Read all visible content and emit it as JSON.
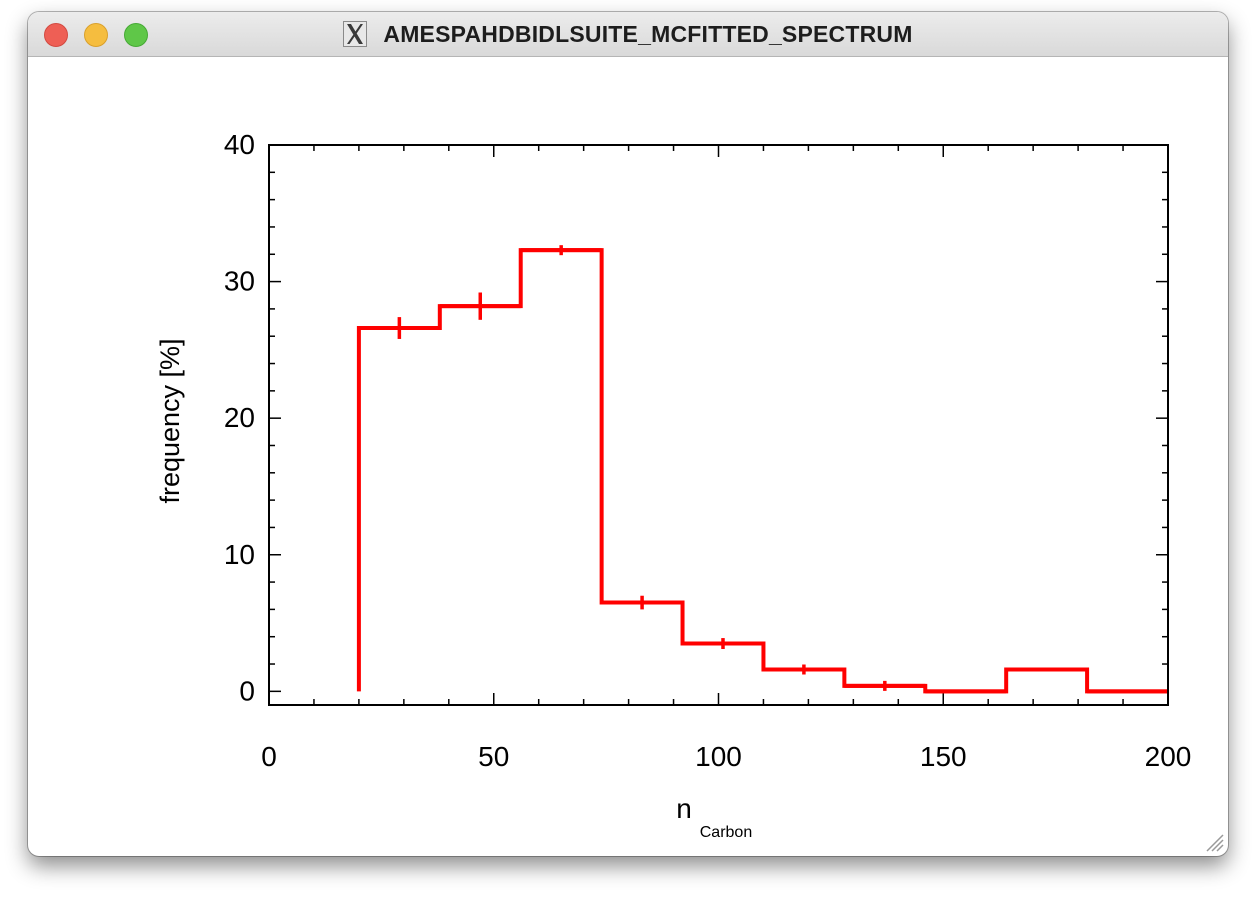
{
  "window": {
    "title": "AMESPAHDBIDLSUITE_MCFITTED_SPECTRUM",
    "title_icon": "x11-icon",
    "buttons": [
      "close",
      "minimize",
      "zoom"
    ]
  },
  "chart_data": {
    "type": "histogram",
    "xlabel": "n",
    "xlabel_subscript": "Carbon",
    "ylabel": "frequency [%]",
    "xlim": [
      0,
      200
    ],
    "ylim": [
      -1,
      40
    ],
    "xticks": [
      0,
      50,
      100,
      150,
      200
    ],
    "yticks": [
      0,
      10,
      20,
      30,
      40
    ],
    "grid": false,
    "color": "#ff0000",
    "bins": [
      {
        "x0": 20,
        "x1": 38,
        "value": 26.6,
        "error": 0.8
      },
      {
        "x0": 38,
        "x1": 56,
        "value": 28.2,
        "error": 1.0
      },
      {
        "x0": 56,
        "x1": 74,
        "value": 32.3,
        "error": 0.3
      },
      {
        "x0": 74,
        "x1": 92,
        "value": 6.5,
        "error": 0.5
      },
      {
        "x0": 92,
        "x1": 110,
        "value": 3.5,
        "error": 0.4
      },
      {
        "x0": 110,
        "x1": 128,
        "value": 1.6,
        "error": 0.3
      },
      {
        "x0": 128,
        "x1": 146,
        "value": 0.4,
        "error": 0.3
      },
      {
        "x0": 146,
        "x1": 164,
        "value": 0.0,
        "error": 0.0
      },
      {
        "x0": 164,
        "x1": 182,
        "value": 1.6,
        "error": 0.0
      },
      {
        "x0": 182,
        "x1": 200,
        "value": 0.0,
        "error": 0.0
      }
    ]
  }
}
